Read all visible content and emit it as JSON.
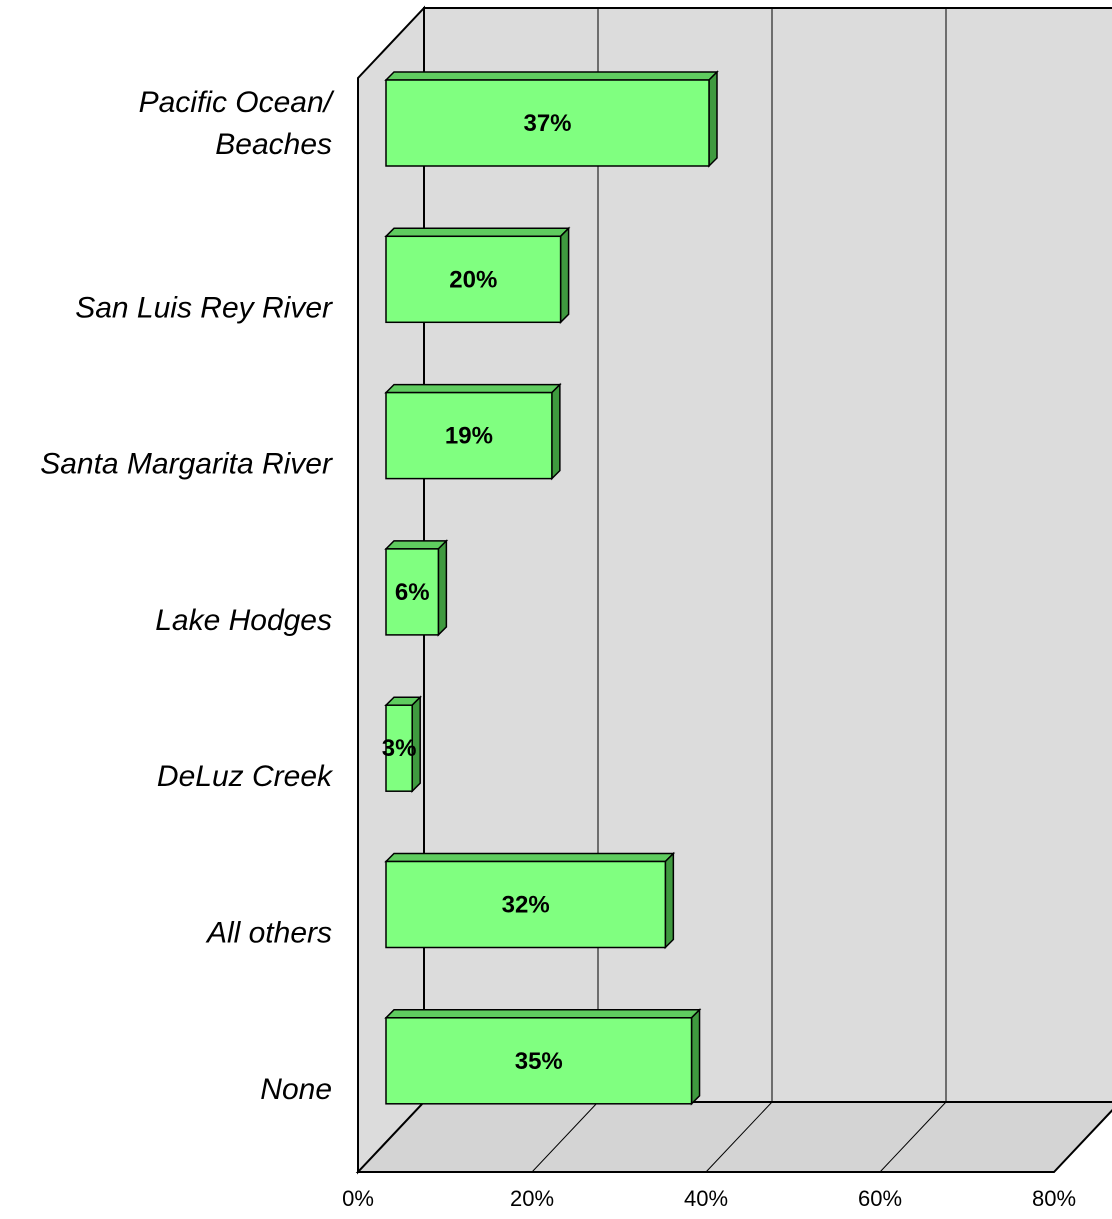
{
  "chart_data": {
    "type": "bar",
    "orientation": "horizontal",
    "three_d": true,
    "categories": [
      "Pacific Ocean/ Beaches",
      "San Luis Rey River",
      "Santa Margarita River",
      "Lake Hodges",
      "DeLuz Creek",
      "All others",
      "None"
    ],
    "category_label_lines": [
      [
        "Pacific Ocean/",
        "Beaches"
      ],
      [
        "San Luis Rey River"
      ],
      [
        "Santa Margarita River"
      ],
      [
        "Lake Hodges"
      ],
      [
        "DeLuz Creek"
      ],
      [
        "All others"
      ],
      [
        "None"
      ]
    ],
    "values": [
      37,
      20,
      19,
      6,
      3,
      32,
      35
    ],
    "data_labels": [
      "37%",
      "20%",
      "19%",
      "6%",
      "3%",
      "32%",
      "35%"
    ],
    "xlim": [
      0,
      80
    ],
    "x_ticks": [
      0,
      20,
      40,
      60,
      80
    ],
    "x_tick_labels": [
      "0%",
      "20%",
      "40%",
      "60%",
      "80%"
    ],
    "title": "",
    "xlabel": "",
    "ylabel": "",
    "grid": true,
    "legend": "none",
    "colors": {
      "bar_front": "#80ff80",
      "bar_side": "#3f9a3f",
      "bar_top": "#5fcc5f",
      "wall": "#dcdcdc",
      "floor": "#d4d4d4"
    }
  }
}
